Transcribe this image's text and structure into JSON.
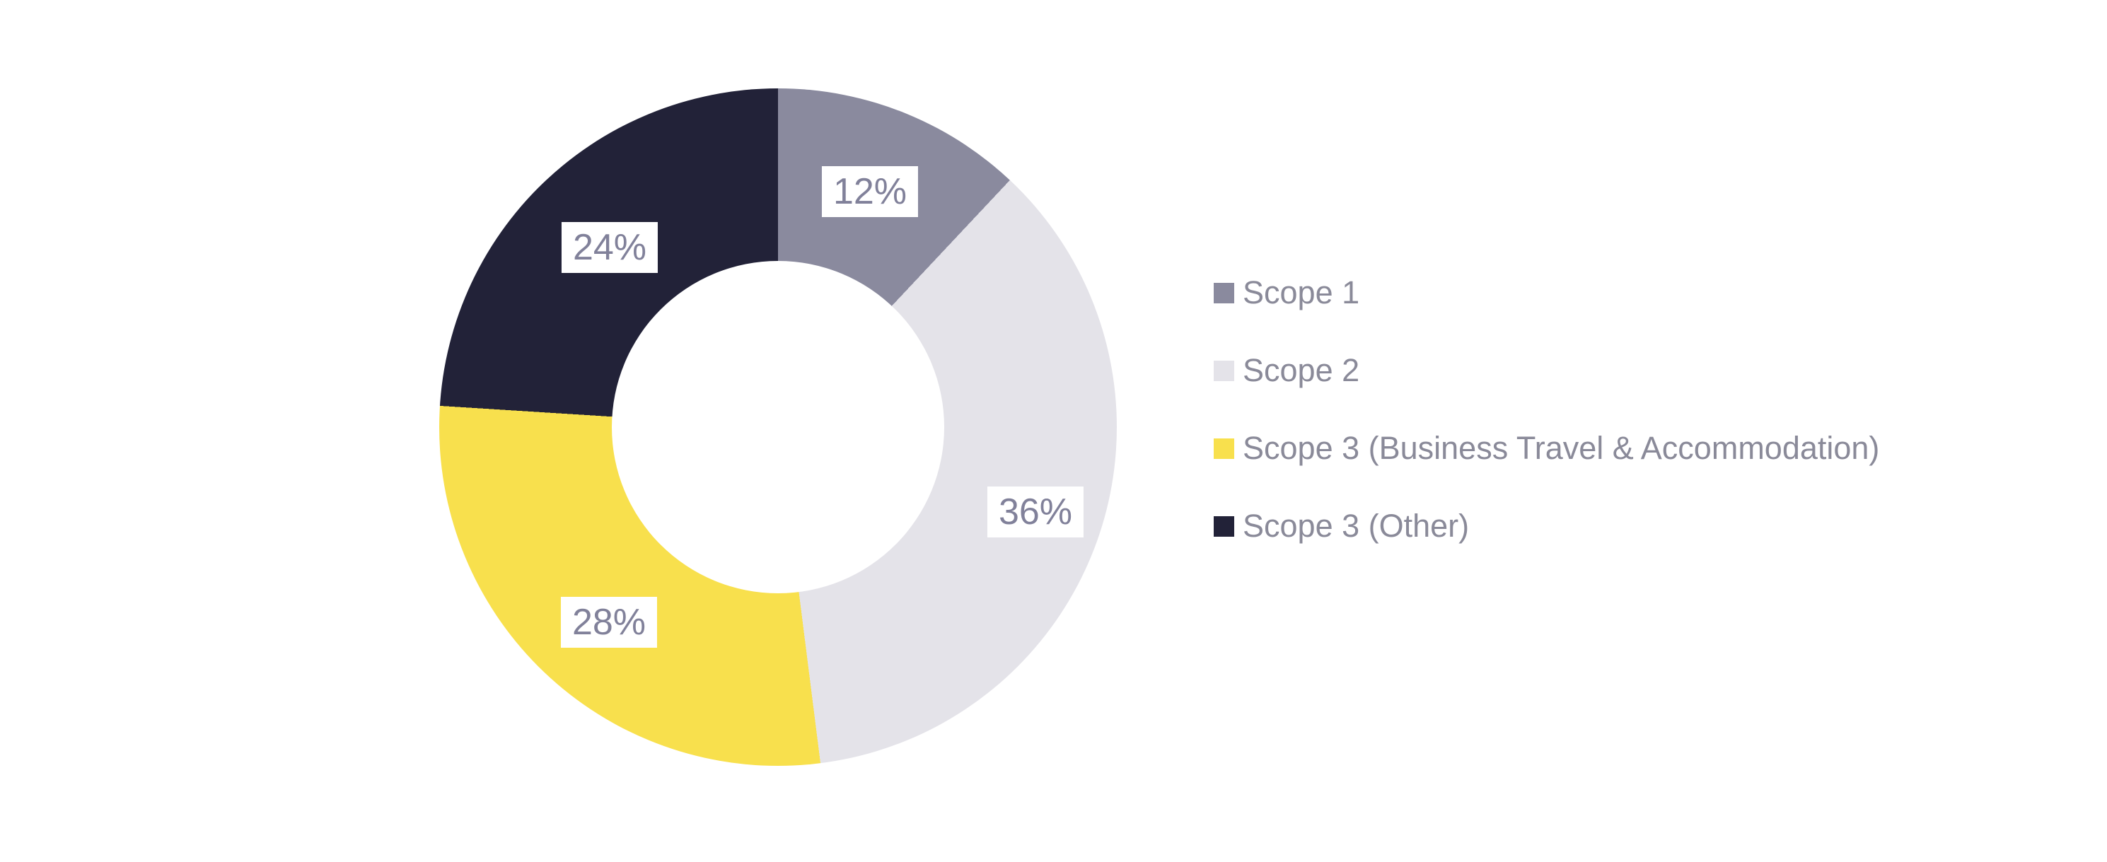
{
  "chart_data": {
    "type": "pie",
    "variant": "donut",
    "title": "",
    "start_angle_deg": 0,
    "direction": "clockwise",
    "inner_radius_ratio": 0.49,
    "legend_position": "right",
    "background_color": "#ffffff",
    "label_chip_background": "#ffffff",
    "label_text_color": "#81819A",
    "legend_text_color": "#8A8A99",
    "categories": [
      "Scope 1",
      "Scope 2",
      "Scope 3 (Business Travel & Accommodation)",
      "Scope 3 (Other)"
    ],
    "values": [
      12,
      36,
      28,
      24
    ],
    "segments": [
      {
        "name": "Scope 1",
        "value": 12,
        "pct_label": "12%",
        "color": "#8A8A9E"
      },
      {
        "name": "Scope 2",
        "value": 36,
        "pct_label": "36%",
        "color": "#E4E3E9"
      },
      {
        "name": "Scope 3 (Business Travel & Accommodation)",
        "value": 28,
        "pct_label": "28%",
        "color": "#F8E04D"
      },
      {
        "name": "Scope 3 (Other)",
        "value": 24,
        "pct_label": "24%",
        "color": "#222238"
      }
    ]
  }
}
